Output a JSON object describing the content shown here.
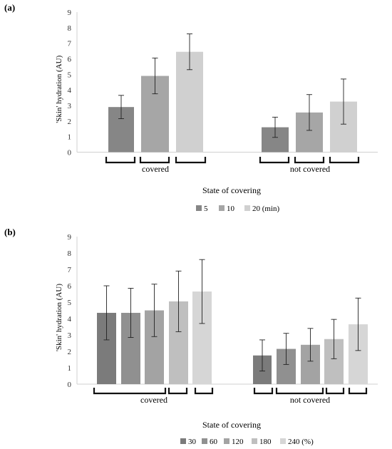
{
  "chart_data": [
    {
      "type": "bar",
      "panel_label": "(a)",
      "ylabel": "'Skin' hydration (AU)",
      "xlabel": "State of covering",
      "ylim": [
        0,
        9
      ],
      "yticks": [
        0,
        1,
        2,
        3,
        4,
        5,
        6,
        7,
        8,
        9
      ],
      "grid": false,
      "legend_position": "bottom",
      "groups": [
        "covered",
        "not covered"
      ],
      "series": [
        {
          "name": "5",
          "color": "#868686",
          "values": [
            2.9,
            1.6
          ],
          "errors": [
            0.75,
            0.65
          ]
        },
        {
          "name": "10",
          "color": "#a6a6a6",
          "values": [
            4.9,
            2.55
          ],
          "errors": [
            1.15,
            1.15
          ]
        },
        {
          "name": "20 (min)",
          "color": "#d0d0d0",
          "values": [
            6.45,
            3.25
          ],
          "errors": [
            1.15,
            1.45
          ]
        }
      ]
    },
    {
      "type": "bar",
      "panel_label": "(b)",
      "ylabel": "'Skin' hydration (AU)",
      "xlabel": "State  of covering",
      "ylim": [
        0,
        9
      ],
      "yticks": [
        0,
        1,
        2,
        3,
        4,
        5,
        6,
        7,
        8,
        9
      ],
      "grid": false,
      "legend_position": "bottom",
      "groups": [
        "covered",
        "not covered"
      ],
      "series": [
        {
          "name": "30",
          "color": "#7b7b7b",
          "values": [
            4.35,
            1.75
          ],
          "errors": [
            1.65,
            0.95
          ]
        },
        {
          "name": "60",
          "color": "#909090",
          "values": [
            4.35,
            2.15
          ],
          "errors": [
            1.5,
            0.95
          ]
        },
        {
          "name": "120",
          "color": "#a3a3a3",
          "values": [
            4.5,
            2.4
          ],
          "errors": [
            1.6,
            1.0
          ]
        },
        {
          "name": "180",
          "color": "#bfbfbf",
          "values": [
            5.05,
            2.75
          ],
          "errors": [
            1.85,
            1.2
          ]
        },
        {
          "name": "240 (%)",
          "color": "#d6d6d6",
          "values": [
            5.65,
            3.65
          ],
          "errors": [
            1.95,
            1.6
          ]
        }
      ]
    }
  ]
}
